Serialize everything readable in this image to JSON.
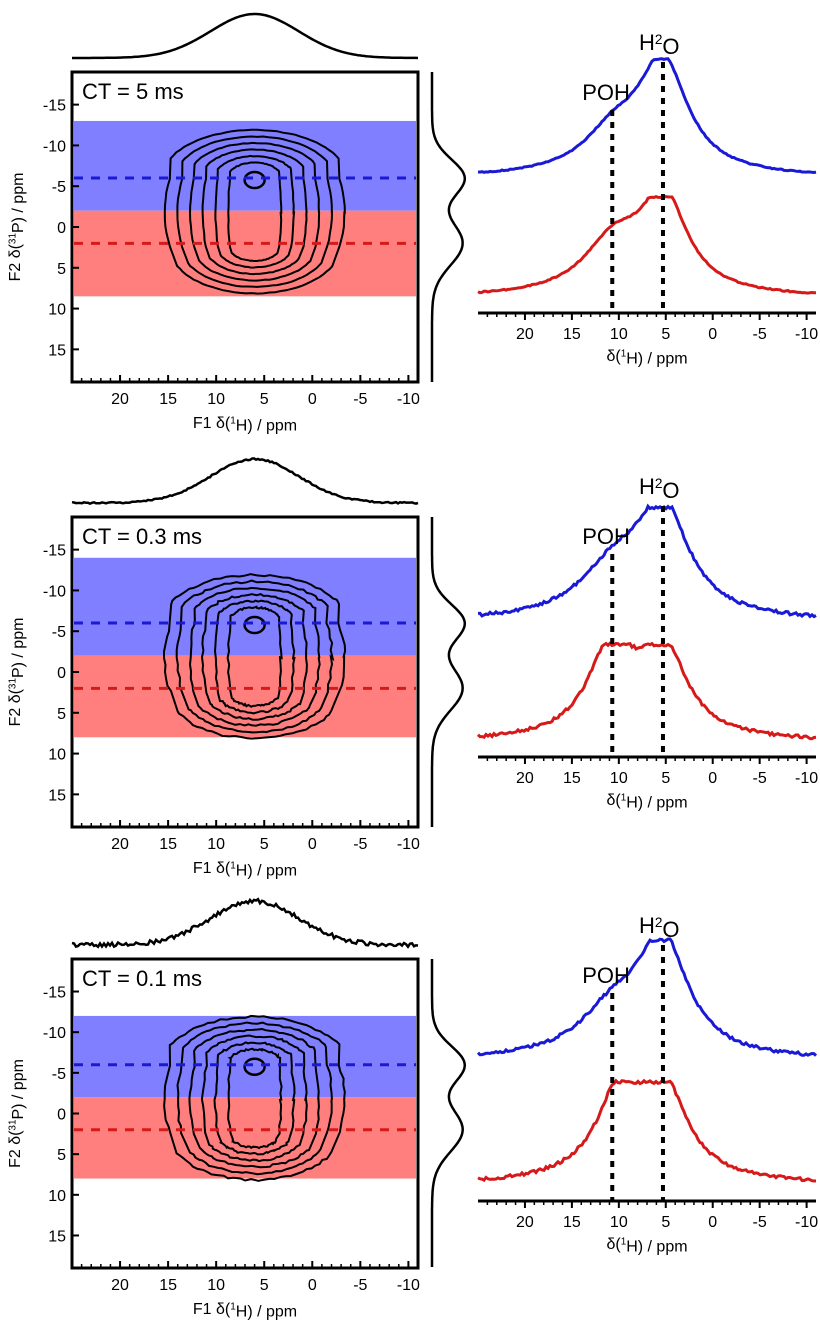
{
  "colors": {
    "blue": "#1a1ad6",
    "red": "#d61a1a",
    "blue_band": "#7f7fff",
    "red_band": "#ff7f7f",
    "contour": "#000000"
  },
  "labels": {
    "x2d": [
      "F1 δ(",
      "1",
      "H) / ppm"
    ],
    "y2d": [
      "F2 δ(",
      "31",
      "P) / ppm"
    ],
    "x1d": [
      "δ(",
      "1",
      "H) / ppm"
    ],
    "poh": "POH",
    "h2o": [
      "H",
      "2",
      "O"
    ]
  },
  "chart_data": [
    {
      "type": "contour",
      "ct_label": "CT = 5 ms",
      "x_ticks": [
        "20",
        "15",
        "10",
        "5",
        "0",
        "-5",
        "-10"
      ],
      "y_ticks": [
        "-15",
        "-10",
        "-5",
        "0",
        "5",
        "10",
        "15"
      ],
      "xlim": [
        25,
        -11
      ],
      "ylim": [
        -19,
        19
      ],
      "contour_center": {
        "f1_ppm": 6,
        "f2_ppm": -5
      },
      "blue_band_f2": [
        -13,
        -2
      ],
      "red_band_f2": [
        -2,
        8.5
      ],
      "blue_slice_f2": -6,
      "red_slice_f2": 2,
      "slices": [
        {
          "name": "blue",
          "peaks": [
            {
              "ppm": 5.3,
              "height": 1.0,
              "width": 3.2
            },
            {
              "ppm": 10.5,
              "height": 0.35,
              "width": 4
            }
          ]
        },
        {
          "name": "red",
          "peaks": [
            {
              "ppm": 5.2,
              "height": 1.0,
              "width": 3.0
            },
            {
              "ppm": 10.5,
              "height": 0.55,
              "width": 4
            }
          ]
        }
      ]
    },
    {
      "type": "contour",
      "ct_label": "CT = 0.3 ms",
      "x_ticks": [
        "20",
        "15",
        "10",
        "5",
        "0",
        "-5",
        "-10"
      ],
      "y_ticks": [
        "-15",
        "-10",
        "-5",
        "0",
        "5",
        "10",
        "15"
      ],
      "xlim": [
        25,
        -11
      ],
      "ylim": [
        -19,
        19
      ],
      "contour_center": {
        "f1_ppm": 6,
        "f2_ppm": -4
      },
      "blue_band_f2": [
        -14,
        -2
      ],
      "red_band_f2": [
        -2,
        8
      ],
      "blue_slice_f2": -6,
      "red_slice_f2": 2,
      "slices": [
        {
          "name": "blue",
          "peaks": [
            {
              "ppm": 5.3,
              "height": 1.0,
              "width": 3.3
            },
            {
              "ppm": 10.5,
              "height": 0.45,
              "width": 4.5
            }
          ]
        },
        {
          "name": "red",
          "peaks": [
            {
              "ppm": 5.2,
              "height": 0.95,
              "width": 3.0
            },
            {
              "ppm": 10.8,
              "height": 1.0,
              "width": 3.0
            }
          ]
        }
      ]
    },
    {
      "type": "contour",
      "ct_label": "CT = 0.1 ms",
      "x_ticks": [
        "20",
        "15",
        "10",
        "5",
        "0",
        "-5",
        "-10"
      ],
      "y_ticks": [
        "-15",
        "-10",
        "-5",
        "0",
        "5",
        "10",
        "15"
      ],
      "xlim": [
        25,
        -11
      ],
      "ylim": [
        -19,
        19
      ],
      "contour_center": {
        "f1_ppm": 6,
        "f2_ppm": -4
      },
      "blue_band_f2": [
        -12,
        -2
      ],
      "red_band_f2": [
        -2,
        8
      ],
      "blue_slice_f2": -6,
      "red_slice_f2": 2,
      "slices": [
        {
          "name": "blue",
          "peaks": [
            {
              "ppm": 5.3,
              "height": 1.0,
              "width": 3.2
            },
            {
              "ppm": 10.5,
              "height": 0.4,
              "width": 4.5
            }
          ]
        },
        {
          "name": "red",
          "peaks": [
            {
              "ppm": 5.2,
              "height": 0.85,
              "width": 3.0
            },
            {
              "ppm": 9.5,
              "height": 1.0,
              "width": 3.2
            }
          ]
        }
      ]
    }
  ]
}
